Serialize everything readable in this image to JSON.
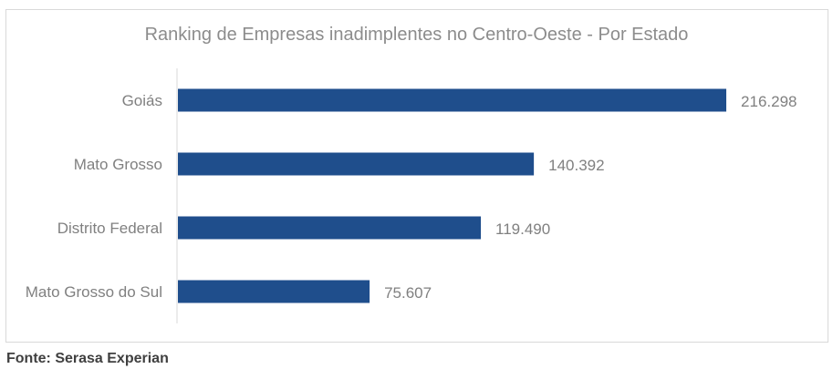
{
  "chart_data": {
    "type": "bar",
    "orientation": "horizontal",
    "title": "Ranking de Empresas inadimplentes no Centro-Oeste - Por Estado",
    "categories": [
      "Goiás",
      "Mato Grosso",
      "Distrito Federal",
      "Mato Grosso do Sul"
    ],
    "values": [
      216298,
      140392,
      119490,
      75607
    ],
    "value_labels": [
      "216.298",
      "140.392",
      "119.490",
      "75.607"
    ],
    "xlim": [
      0,
      226000
    ],
    "grid": false,
    "legend": "none",
    "bar_color": "#1f4e8c",
    "axis_color": "#d9d9d9",
    "label_color": "#808080"
  },
  "source": "Fonte: Serasa Experian"
}
